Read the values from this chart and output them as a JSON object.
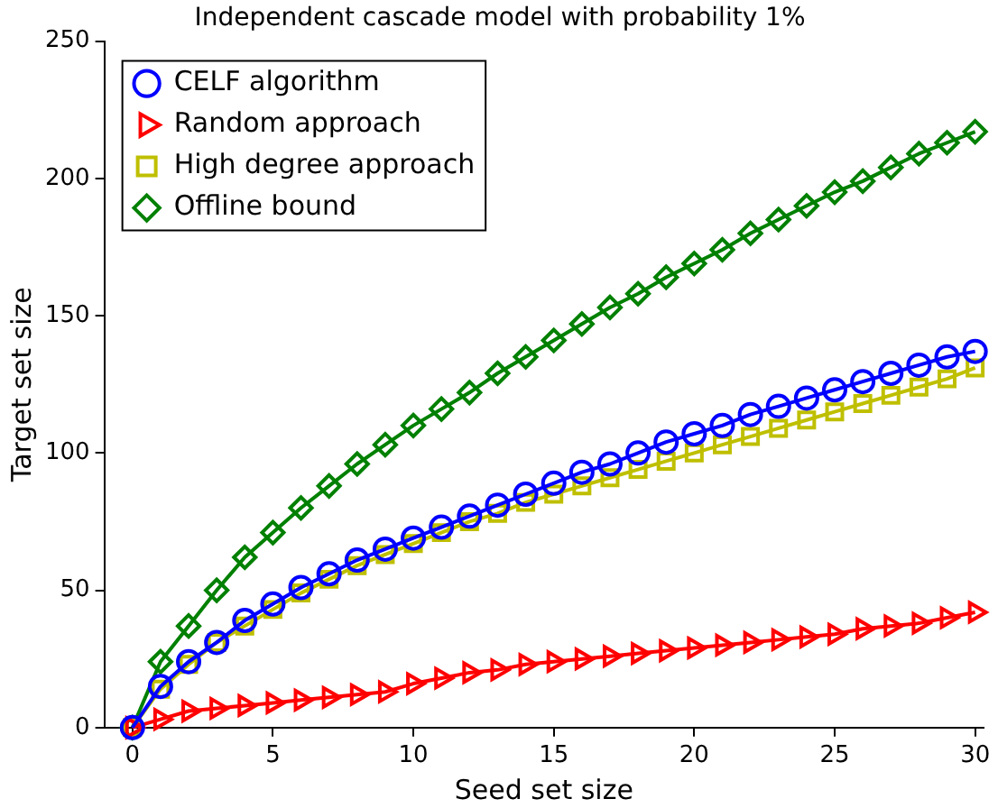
{
  "chart_data": {
    "type": "line",
    "title": "Independent cascade model with probability 1%",
    "xlabel": "Seed set size",
    "ylabel": "Target set size",
    "x": [
      0,
      1,
      2,
      3,
      4,
      5,
      6,
      7,
      8,
      9,
      10,
      11,
      12,
      13,
      14,
      15,
      16,
      17,
      18,
      19,
      20,
      21,
      22,
      23,
      24,
      25,
      26,
      27,
      28,
      29,
      30
    ],
    "series": [
      {
        "name": "CELF algorithm",
        "color": "#0000ff",
        "marker": "circle",
        "values": [
          0,
          15,
          24,
          31,
          39,
          45,
          51,
          56,
          61,
          65,
          69,
          73,
          77,
          81,
          85,
          89,
          93,
          96,
          100,
          104,
          107,
          110,
          114,
          117,
          120,
          123,
          126,
          129,
          132,
          135,
          137
        ]
      },
      {
        "name": "Random approach",
        "color": "#ff0000",
        "marker": "triangle",
        "values": [
          0,
          3,
          6,
          7,
          8,
          9,
          10,
          11,
          12,
          13,
          16,
          18,
          20,
          21,
          23,
          24,
          25,
          26,
          27,
          28,
          29,
          30,
          31,
          32,
          33,
          34,
          36,
          37,
          38,
          40,
          42
        ]
      },
      {
        "name": "High degree approach",
        "color": "#bfbf00",
        "marker": "square",
        "values": [
          0,
          14,
          23,
          31,
          37,
          43,
          49,
          54,
          59,
          63,
          67,
          71,
          75,
          78,
          82,
          85,
          88,
          91,
          94,
          97,
          100,
          103,
          106,
          109,
          112,
          115,
          118,
          121,
          124,
          127,
          131
        ]
      },
      {
        "name": "Offline bound",
        "color": "#008000",
        "marker": "diamond",
        "values": [
          0,
          24,
          37,
          50,
          62,
          71,
          80,
          88,
          96,
          103,
          110,
          116,
          122,
          129,
          135,
          141,
          147,
          153,
          158,
          164,
          169,
          174,
          180,
          185,
          190,
          195,
          199,
          204,
          209,
          213,
          217
        ]
      }
    ],
    "xlim": [
      -1,
      30.3
    ],
    "xticks": [
      0,
      5,
      10,
      15,
      20,
      25,
      30
    ],
    "ylim": [
      0,
      250
    ],
    "yticks": [
      0,
      50,
      100,
      150,
      200,
      250
    ],
    "grid": false,
    "legend": "top left",
    "line_style": "solid"
  }
}
